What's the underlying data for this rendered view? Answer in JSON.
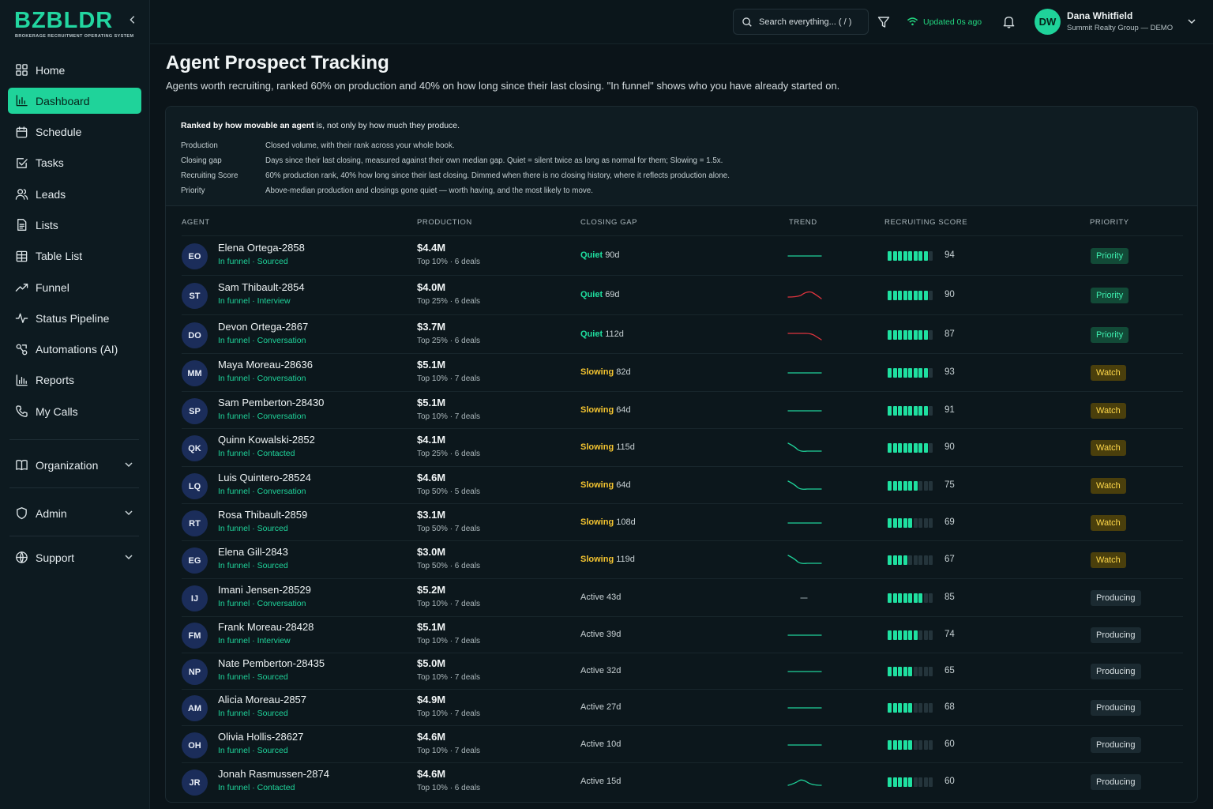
{
  "brand": {
    "name": "BZBLDR",
    "tagline": "BROKERAGE RECRUITMENT OPERATING SYSTEM"
  },
  "sidebar": {
    "items": [
      {
        "label": "Home",
        "icon": "grid-icon",
        "active": false
      },
      {
        "label": "Dashboard",
        "icon": "bar-chart-icon",
        "active": true
      },
      {
        "label": "Schedule",
        "icon": "calendar-icon",
        "active": false
      },
      {
        "label": "Tasks",
        "icon": "checkbox-icon",
        "active": false
      },
      {
        "label": "Leads",
        "icon": "users-icon",
        "active": false
      },
      {
        "label": "Lists",
        "icon": "document-icon",
        "active": false
      },
      {
        "label": "Table List",
        "icon": "table-icon",
        "active": false
      },
      {
        "label": "Funnel",
        "icon": "trend-up-icon",
        "active": false
      },
      {
        "label": "Status Pipeline",
        "icon": "pulse-icon",
        "active": false
      },
      {
        "label": "Automations (AI)",
        "icon": "automation-icon",
        "active": false
      },
      {
        "label": "Reports",
        "icon": "reports-icon",
        "active": false
      },
      {
        "label": "My Calls",
        "icon": "phone-icon",
        "active": false
      }
    ],
    "groups": [
      {
        "label": "Organization",
        "icon": "book-icon"
      },
      {
        "label": "Admin",
        "icon": "shield-icon"
      },
      {
        "label": "Support",
        "icon": "globe-icon"
      }
    ]
  },
  "topbar": {
    "search_placeholder": "Search everything... ( / )",
    "updated": "Updated 0s ago",
    "user": {
      "initials": "DW",
      "name": "Dana Whitfield",
      "org": "Summit Realty Group — DEMO"
    }
  },
  "page": {
    "title": "Agent Prospect Tracking",
    "description": "Agents worth recruiting, ranked 60% on production and 40% on how long since their last closing. \"In funnel\" shows who you have already started on."
  },
  "legend": {
    "head_bold": "Ranked by how movable an agent",
    "head_rest": " is, not only by how much they produce.",
    "rows": [
      {
        "key": "Production",
        "value": "Closed volume, with their rank across your whole book."
      },
      {
        "key": "Closing gap",
        "value": "Days since their last closing, measured against their own median gap. Quiet = silent twice as long as normal for them; Slowing = 1.5x."
      },
      {
        "key": "Recruiting Score",
        "value": "60% production rank, 40% how long since their last closing. Dimmed when there is no closing history, where it reflects production alone."
      },
      {
        "key": "Priority",
        "value": "Above-median production and closings gone quiet — worth having, and the most likely to move."
      }
    ]
  },
  "table": {
    "headers": {
      "agent": "AGENT",
      "production": "PRODUCTION",
      "gap": "CLOSING GAP",
      "trend": "TREND",
      "score": "RECRUITING SCORE",
      "priority": "PRIORITY"
    },
    "rows": [
      {
        "initials": "EO",
        "name": "Elena Ortega-2858",
        "funnel": "In funnel · Sourced",
        "production": "$4.4M",
        "rank": "Top 10% · 6 deals",
        "gap_status": "Quiet",
        "gap_days": "90d",
        "trend": "flat",
        "trend_color": "#1fd39a",
        "score": 94,
        "segments": 8,
        "priority": "Priority"
      },
      {
        "initials": "ST",
        "name": "Sam Thibault-2854",
        "funnel": "In funnel · Interview",
        "production": "$4.0M",
        "rank": "Top 25% · 6 deals",
        "gap_status": "Quiet",
        "gap_days": "69d",
        "trend": "bump",
        "trend_color": "#e0343e",
        "score": 90,
        "segments": 8,
        "priority": "Priority"
      },
      {
        "initials": "DO",
        "name": "Devon Ortega-2867",
        "funnel": "In funnel · Conversation",
        "production": "$3.7M",
        "rank": "Top 25% · 6 deals",
        "gap_status": "Quiet",
        "gap_days": "112d",
        "trend": "drop",
        "trend_color": "#e0343e",
        "score": 87,
        "segments": 8,
        "priority": "Priority"
      },
      {
        "initials": "MM",
        "name": "Maya Moreau-28636",
        "funnel": "In funnel · Conversation",
        "production": "$5.1M",
        "rank": "Top 10% · 7 deals",
        "gap_status": "Slowing",
        "gap_days": "82d",
        "trend": "flat",
        "trend_color": "#1fd39a",
        "score": 93,
        "segments": 8,
        "priority": "Watch"
      },
      {
        "initials": "SP",
        "name": "Sam Pemberton-28430",
        "funnel": "In funnel · Conversation",
        "production": "$5.1M",
        "rank": "Top 10% · 7 deals",
        "gap_status": "Slowing",
        "gap_days": "64d",
        "trend": "flat",
        "trend_color": "#1fd39a",
        "score": 91,
        "segments": 8,
        "priority": "Watch"
      },
      {
        "initials": "QK",
        "name": "Quinn Kowalski-2852",
        "funnel": "In funnel · Contacted",
        "production": "$4.1M",
        "rank": "Top 25% · 6 deals",
        "gap_status": "Slowing",
        "gap_days": "115d",
        "trend": "decline",
        "trend_color": "#1fd39a",
        "score": 90,
        "segments": 8,
        "priority": "Watch"
      },
      {
        "initials": "LQ",
        "name": "Luis Quintero-28524",
        "funnel": "In funnel · Conversation",
        "production": "$4.6M",
        "rank": "Top 50% · 5 deals",
        "gap_status": "Slowing",
        "gap_days": "64d",
        "trend": "decline",
        "trend_color": "#1fd39a",
        "score": 75,
        "segments": 6,
        "priority": "Watch"
      },
      {
        "initials": "RT",
        "name": "Rosa Thibault-2859",
        "funnel": "In funnel · Sourced",
        "production": "$3.1M",
        "rank": "Top 50% · 7 deals",
        "gap_status": "Slowing",
        "gap_days": "108d",
        "trend": "flat",
        "trend_color": "#1fd39a",
        "score": 69,
        "segments": 5,
        "priority": "Watch"
      },
      {
        "initials": "EG",
        "name": "Elena Gill-2843",
        "funnel": "In funnel · Sourced",
        "production": "$3.0M",
        "rank": "Top 50% · 6 deals",
        "gap_status": "Slowing",
        "gap_days": "119d",
        "trend": "decline",
        "trend_color": "#1fd39a",
        "score": 67,
        "segments": 4,
        "priority": "Watch"
      },
      {
        "initials": "IJ",
        "name": "Imani Jensen-28529",
        "funnel": "In funnel · Conversation",
        "production": "$5.2M",
        "rank": "Top 10% · 7 deals",
        "gap_status": "",
        "gap_days": "Active 43d",
        "trend": "none",
        "trend_color": "#7d8a90",
        "score": 85,
        "segments": 7,
        "priority": "Producing"
      },
      {
        "initials": "FM",
        "name": "Frank Moreau-28428",
        "funnel": "In funnel · Interview",
        "production": "$5.1M",
        "rank": "Top 10% · 7 deals",
        "gap_status": "",
        "gap_days": "Active 39d",
        "trend": "flat",
        "trend_color": "#1fd39a",
        "score": 74,
        "segments": 6,
        "priority": "Producing"
      },
      {
        "initials": "NP",
        "name": "Nate Pemberton-28435",
        "funnel": "In funnel · Sourced",
        "production": "$5.0M",
        "rank": "Top 10% · 7 deals",
        "gap_status": "",
        "gap_days": "Active 32d",
        "trend": "flat",
        "trend_color": "#1fd39a",
        "score": 65,
        "segments": 5,
        "priority": "Producing"
      },
      {
        "initials": "AM",
        "name": "Alicia Moreau-2857",
        "funnel": "In funnel · Sourced",
        "production": "$4.9M",
        "rank": "Top 10% · 7 deals",
        "gap_status": "",
        "gap_days": "Active 27d",
        "trend": "flat",
        "trend_color": "#1fd39a",
        "score": 68,
        "segments": 5,
        "priority": "Producing"
      },
      {
        "initials": "OH",
        "name": "Olivia Hollis-28627",
        "funnel": "In funnel · Sourced",
        "production": "$4.6M",
        "rank": "Top 10% · 7 deals",
        "gap_status": "",
        "gap_days": "Active 10d",
        "trend": "flat",
        "trend_color": "#1fd39a",
        "score": 60,
        "segments": 5,
        "priority": "Producing"
      },
      {
        "initials": "JR",
        "name": "Jonah Rasmussen-2874",
        "funnel": "In funnel · Contacted",
        "production": "$4.6M",
        "rank": "Top 10% · 6 deals",
        "gap_status": "",
        "gap_days": "Active 15d",
        "trend": "hump",
        "trend_color": "#1fd39a",
        "score": 60,
        "segments": 5,
        "priority": "Producing"
      }
    ]
  }
}
